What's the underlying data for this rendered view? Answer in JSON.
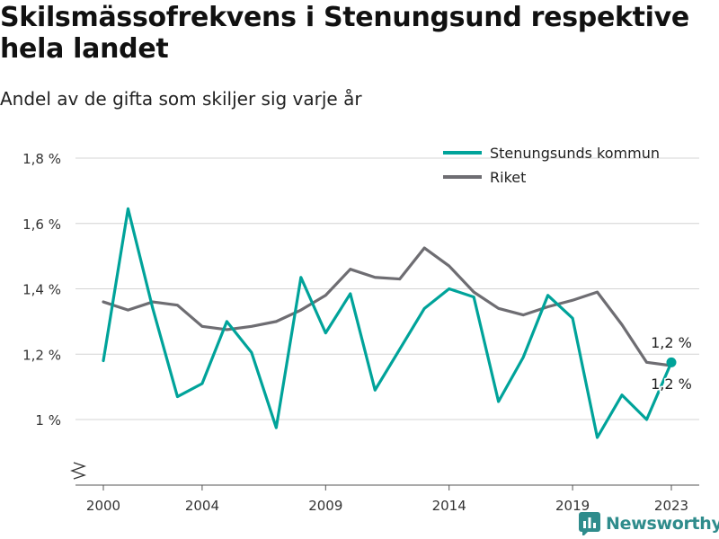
{
  "title": "Skilsmässofrekvens i Stenungsund respektive hela landet",
  "subtitle": "Andel av de gifta som skiljer sig varje år",
  "brand": "Newsworthy",
  "chart_data": {
    "type": "line",
    "x": [
      2000,
      2001,
      2002,
      2003,
      2004,
      2005,
      2006,
      2007,
      2008,
      2009,
      2010,
      2011,
      2012,
      2013,
      2014,
      2015,
      2016,
      2017,
      2018,
      2019,
      2020,
      2021,
      2022,
      2023
    ],
    "x_ticks": [
      2000,
      2004,
      2009,
      2014,
      2019,
      2023
    ],
    "y_ticks": [
      1.0,
      1.2,
      1.4,
      1.6,
      1.8
    ],
    "y_tick_labels": [
      "1 %",
      "1,2 %",
      "1,4 %",
      "1,6 %",
      "1,8 %"
    ],
    "ylim": [
      0.9,
      1.8
    ],
    "y_axis_broken": true,
    "grid": true,
    "legend_position": "top-right",
    "series": [
      {
        "name": "Stenungsunds kommun",
        "color": "#00a39a",
        "values": [
          1.18,
          1.645,
          1.34,
          1.07,
          1.11,
          1.3,
          1.205,
          0.975,
          1.435,
          1.265,
          1.385,
          1.09,
          1.215,
          1.34,
          1.4,
          1.375,
          1.055,
          1.19,
          1.38,
          1.31,
          0.945,
          1.075,
          1.0,
          1.175
        ],
        "end_label": "1,2 %"
      },
      {
        "name": "Riket",
        "color": "#6e6d72",
        "values": [
          1.36,
          1.335,
          1.36,
          1.35,
          1.285,
          1.275,
          1.285,
          1.3,
          1.335,
          1.38,
          1.46,
          1.435,
          1.43,
          1.525,
          1.47,
          1.39,
          1.34,
          1.32,
          1.345,
          1.365,
          1.39,
          1.29,
          1.175,
          1.165
        ],
        "end_label": "1,2 %"
      }
    ]
  }
}
